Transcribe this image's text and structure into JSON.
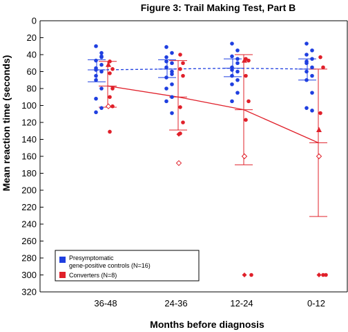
{
  "chart_data": {
    "type": "scatter",
    "title": "Figure 3: Trail Making Test, Part B",
    "xlabel": "Months before diagnosis",
    "ylabel": "Mean reaction time (seconds)",
    "categories": [
      "36-48",
      "24-36",
      "12-24",
      "0-12"
    ],
    "y_axis_inverted": true,
    "ylim": [
      0,
      320
    ],
    "yticks": [
      0,
      20,
      40,
      60,
      80,
      100,
      120,
      140,
      160,
      180,
      200,
      220,
      240,
      260,
      280,
      300,
      320
    ],
    "legend_position": "bottom-left",
    "colors": {
      "controls": "#1f3fe0",
      "converters": "#e0202a"
    },
    "series": [
      {
        "name": "Presymptomatic gene-positive controls (N=16)",
        "color": "#1f3fe0",
        "mean": [
          58,
          57,
          56,
          57
        ],
        "sd_low": [
          46,
          46,
          45,
          45
        ],
        "sd_high": [
          72,
          67,
          66,
          70
        ],
        "points": [
          [
            30,
            42,
            47,
            52,
            58,
            60,
            70,
            80,
            92,
            103,
            108,
            43,
            56,
            38,
            65
          ],
          [
            31,
            38,
            43,
            50,
            55,
            60,
            67,
            75,
            80,
            90,
            95,
            109,
            48,
            63
          ],
          [
            27,
            35,
            42,
            50,
            55,
            60,
            65,
            70,
            75,
            85,
            95,
            45,
            58
          ],
          [
            27,
            35,
            40,
            45,
            50,
            55,
            60,
            65,
            70,
            85,
            103,
            106,
            48
          ]
        ]
      },
      {
        "name": "Converters (N=8)",
        "color": "#e0202a",
        "mean": [
          77,
          90,
          105,
          144
        ],
        "sd_low": [
          48,
          47,
          40,
          57
        ],
        "sd_high": [
          102,
          129,
          170,
          231
        ],
        "points": [
          [
            48,
            57,
            62,
            80,
            90,
            101,
            131
          ],
          [
            40,
            50,
            57,
            65,
            102,
            120,
            133
          ],
          [
            45,
            47,
            65,
            95,
            117,
            300
          ],
          [
            43,
            55,
            109,
            300,
            300
          ]
        ],
        "triangles": [
          52,
          null,
          47,
          129
        ],
        "open_diamonds": [
          101,
          168,
          160,
          160
        ],
        "filled_diamonds": [
          null,
          134,
          300,
          300
        ]
      }
    ]
  }
}
